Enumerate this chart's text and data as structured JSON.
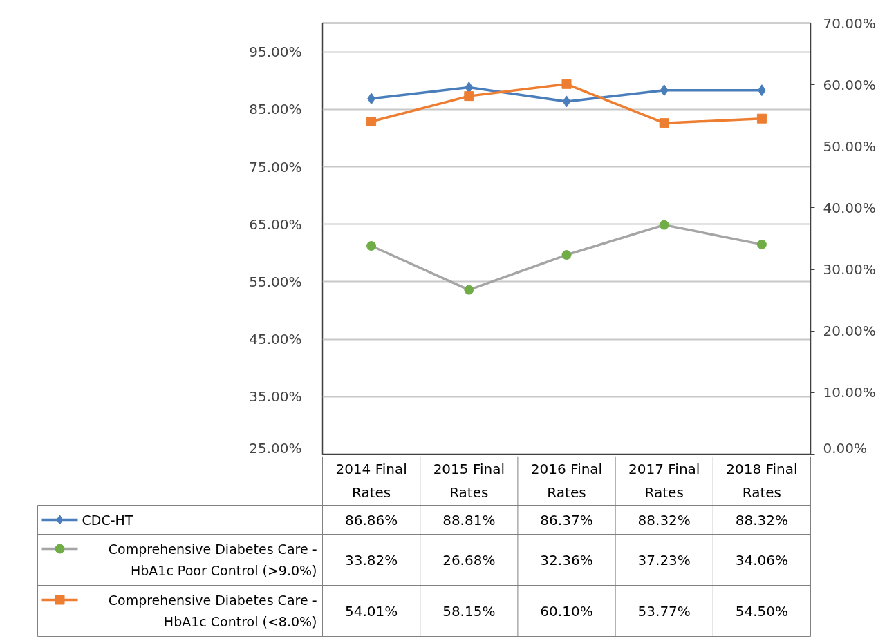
{
  "chart_data": {
    "type": "line",
    "categories": [
      "2014 Final Rates",
      "2015 Final Rates",
      "2016 Final Rates",
      "2017 Final Rates",
      "2018 Final Rates"
    ],
    "series": [
      {
        "name": "CDC-HT",
        "color": "#4a7ebb",
        "marker": "diamond",
        "values": [
          86.86,
          88.81,
          86.37,
          88.32,
          88.32
        ],
        "value_labels": [
          "86.86%",
          "88.81%",
          "86.37%",
          "88.32%",
          "88.32%"
        ]
      },
      {
        "name": "Comprehensive Diabetes Care - HbA1c Poor Control (>9.0%)",
        "color": "#a5a5a5",
        "colors": [
          "#70ad47",
          "#70ad47",
          "#70ad47",
          "#70ad47",
          "#70ad47"
        ],
        "marker": "circle",
        "axis": "y2",
        "values": [
          33.82,
          26.68,
          32.36,
          37.23,
          34.06
        ],
        "value_labels": [
          "33.82%",
          "26.68%",
          "32.36%",
          "37.23%",
          "34.06%"
        ]
      },
      {
        "name": "Comprehensive Diabetes Care - HbA1c Control (<8.0%)",
        "color": "#ed7d31",
        "marker": "square",
        "axis": "y2",
        "values": [
          54.01,
          58.15,
          60.1,
          53.77,
          54.5
        ],
        "value_labels": [
          "54.01%",
          "58.15%",
          "60.10%",
          "53.77%",
          "54.50%"
        ]
      }
    ],
    "ylim": [
      25,
      100
    ],
    "yticks": [
      {
        "value": 25,
        "label": "25.00%"
      },
      {
        "value": 35,
        "label": "35.00%"
      },
      {
        "value": 45,
        "label": "45.00%"
      },
      {
        "value": 55,
        "label": "55.00%"
      },
      {
        "value": 65,
        "label": "65.00%"
      },
      {
        "value": 75,
        "label": "75.00%"
      },
      {
        "value": 85,
        "label": "85.00%"
      },
      {
        "value": 95,
        "label": "95.00%"
      }
    ],
    "y2lim": [
      0,
      70
    ],
    "y2ticks": [
      {
        "value": 0,
        "label": "0.00%"
      },
      {
        "value": 10,
        "label": "10.00%"
      },
      {
        "value": 20,
        "label": "20.00%"
      },
      {
        "value": 30,
        "label": "30.00%"
      },
      {
        "value": 40,
        "label": "40.00%"
      },
      {
        "value": 50,
        "label": "50.00%"
      },
      {
        "value": 60,
        "label": "60.00%"
      },
      {
        "value": 70,
        "label": "70.00%"
      }
    ],
    "grid": "y",
    "legend": "bottom",
    "line_style": "solid"
  }
}
